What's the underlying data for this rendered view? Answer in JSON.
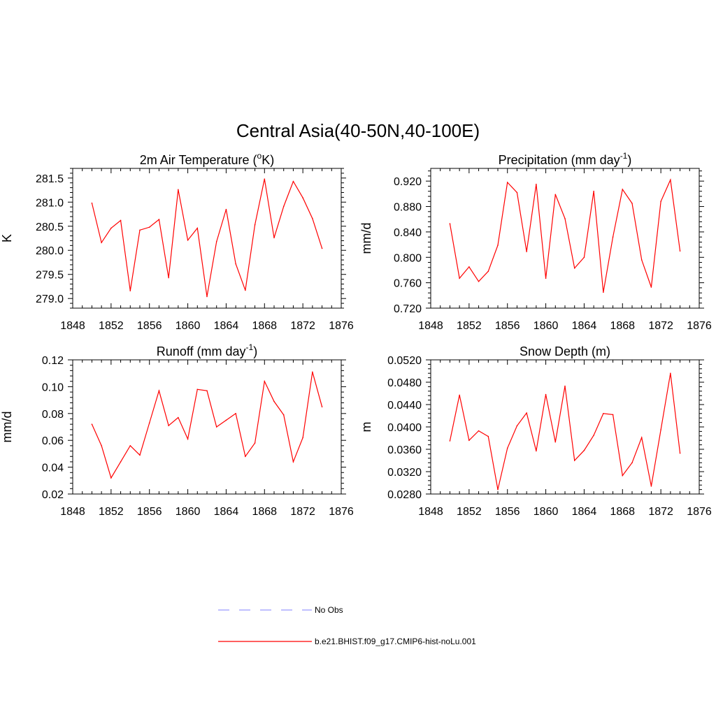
{
  "figure": {
    "title": "Central Asia(40-50N,40-100E)"
  },
  "legend": [
    {
      "label": "No Obs",
      "color": "#9a9aff",
      "dashed": true
    },
    {
      "label": "b.e21.BHIST.f09_g17.CMIP6-hist-noLu.001",
      "color": "#ff0000",
      "dashed": false
    }
  ],
  "chart_data": [
    {
      "type": "line",
      "title": "2m Air Temperature (",
      "title_sup": "o",
      "title_after": "K)",
      "ylabel": "K",
      "xlim": [
        1848,
        1876
      ],
      "ylim": [
        278.8,
        281.7
      ],
      "xticks": [
        1848,
        1852,
        1856,
        1860,
        1864,
        1868,
        1872,
        1876
      ],
      "yticks": [
        279.0,
        279.5,
        280.0,
        280.5,
        281.0,
        281.5
      ],
      "ytick_labels": [
        "279.0",
        "279.5",
        "280.0",
        "280.5",
        "281.0",
        "281.5"
      ],
      "series": [
        {
          "color": "#ff0000",
          "x": [
            1850,
            1851,
            1852,
            1853,
            1854,
            1855,
            1856,
            1857,
            1858,
            1859,
            1860,
            1861,
            1862,
            1863,
            1864,
            1865,
            1866,
            1867,
            1868,
            1869,
            1870,
            1871,
            1872,
            1873,
            1874
          ],
          "values": [
            280.98,
            280.16,
            280.46,
            280.62,
            279.16,
            280.42,
            280.48,
            280.64,
            279.43,
            281.26,
            280.21,
            280.46,
            279.04,
            280.18,
            280.85,
            279.72,
            279.17,
            280.53,
            281.48,
            280.26,
            280.91,
            281.43,
            281.09,
            280.66,
            280.04
          ]
        }
      ]
    },
    {
      "type": "line",
      "title": "Precipitation (mm day",
      "title_sup": "-1",
      "title_after": ")",
      "ylabel": "mm/d",
      "xlim": [
        1848,
        1876
      ],
      "ylim": [
        0.72,
        0.94
      ],
      "xticks": [
        1848,
        1852,
        1856,
        1860,
        1864,
        1868,
        1872,
        1876
      ],
      "yticks": [
        0.72,
        0.76,
        0.8,
        0.84,
        0.88,
        0.92
      ],
      "ytick_labels": [
        "0.720",
        "0.760",
        "0.800",
        "0.840",
        "0.880",
        "0.920"
      ],
      "series": [
        {
          "color": "#ff0000",
          "x": [
            1850,
            1851,
            1852,
            1853,
            1854,
            1855,
            1856,
            1857,
            1858,
            1859,
            1860,
            1861,
            1862,
            1863,
            1864,
            1865,
            1866,
            1867,
            1868,
            1869,
            1870,
            1871,
            1872,
            1873,
            1874
          ],
          "values": [
            0.853,
            0.767,
            0.785,
            0.762,
            0.778,
            0.819,
            0.918,
            0.902,
            0.809,
            0.915,
            0.767,
            0.899,
            0.861,
            0.783,
            0.8,
            0.904,
            0.745,
            0.832,
            0.907,
            0.885,
            0.796,
            0.753,
            0.888,
            0.922,
            0.81
          ]
        }
      ]
    },
    {
      "type": "line",
      "title": "Runoff (mm day",
      "title_sup": "-1",
      "title_after": ")",
      "ylabel": "mm/d",
      "xlim": [
        1848,
        1876
      ],
      "ylim": [
        0.02,
        0.12
      ],
      "xticks": [
        1848,
        1852,
        1856,
        1860,
        1864,
        1868,
        1872,
        1876
      ],
      "yticks": [
        0.02,
        0.04,
        0.06,
        0.08,
        0.1,
        0.12
      ],
      "ytick_labels": [
        "0.02",
        "0.04",
        "0.06",
        "0.08",
        "0.10",
        "0.12"
      ],
      "series": [
        {
          "color": "#ff0000",
          "x": [
            1850,
            1851,
            1852,
            1853,
            1854,
            1855,
            1856,
            1857,
            1858,
            1859,
            1860,
            1861,
            1862,
            1863,
            1864,
            1865,
            1866,
            1867,
            1868,
            1869,
            1870,
            1871,
            1872,
            1873,
            1874
          ],
          "values": [
            0.072,
            0.056,
            0.032,
            0.044,
            0.056,
            0.049,
            0.073,
            0.097,
            0.071,
            0.077,
            0.061,
            0.098,
            0.097,
            0.07,
            0.075,
            0.08,
            0.048,
            0.058,
            0.104,
            0.089,
            0.079,
            0.044,
            0.062,
            0.111,
            0.085
          ]
        }
      ]
    },
    {
      "type": "line",
      "title": "Snow Depth (m)",
      "title_sup": "",
      "title_after": "",
      "ylabel": "m",
      "xlim": [
        1848,
        1876
      ],
      "ylim": [
        0.028,
        0.052
      ],
      "xticks": [
        1848,
        1852,
        1856,
        1860,
        1864,
        1868,
        1872,
        1876
      ],
      "yticks": [
        0.028,
        0.032,
        0.036,
        0.04,
        0.044,
        0.048,
        0.052
      ],
      "ytick_labels": [
        "0.0280",
        "0.0320",
        "0.0360",
        "0.0400",
        "0.0440",
        "0.0480",
        "0.0520"
      ],
      "series": [
        {
          "color": "#ff0000",
          "x": [
            1850,
            1851,
            1852,
            1853,
            1854,
            1855,
            1856,
            1857,
            1858,
            1859,
            1860,
            1861,
            1862,
            1863,
            1864,
            1865,
            1866,
            1867,
            1868,
            1869,
            1870,
            1871,
            1872,
            1873,
            1874
          ],
          "values": [
            0.0375,
            0.0457,
            0.0376,
            0.0393,
            0.0383,
            0.0288,
            0.0362,
            0.0402,
            0.0425,
            0.0357,
            0.0458,
            0.0373,
            0.0473,
            0.034,
            0.0358,
            0.0385,
            0.0424,
            0.0422,
            0.0313,
            0.0336,
            0.0381,
            0.0294,
            0.0395,
            0.0496,
            0.0353
          ]
        }
      ]
    }
  ]
}
